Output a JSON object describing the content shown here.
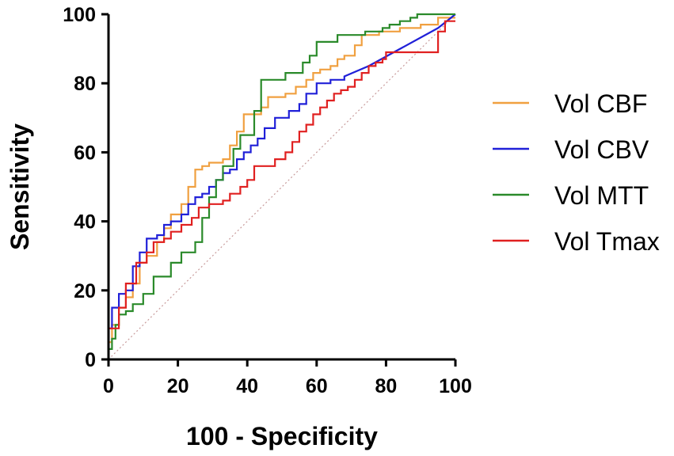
{
  "chart_data": {
    "type": "line",
    "title": "",
    "xlabel": "100 - Specificity",
    "ylabel": "Sensitivity",
    "xlim": [
      0,
      100
    ],
    "ylim": [
      0,
      100
    ],
    "xticks": [
      0,
      20,
      40,
      60,
      80,
      100
    ],
    "yticks": [
      0,
      20,
      40,
      60,
      80,
      100
    ],
    "xtick_labels": [
      "0",
      "20",
      "40",
      "60",
      "80",
      "100"
    ],
    "ytick_labels": [
      "0",
      "20",
      "40",
      "60",
      "80",
      "100"
    ],
    "grid": false,
    "legend_position": "right",
    "reference_line": {
      "name": "Reference",
      "color": "#c89b9b",
      "style": "dotted",
      "x": [
        0,
        100
      ],
      "y": [
        0,
        100
      ]
    },
    "series": [
      {
        "name": "Vol CBF",
        "color": "#f0a040",
        "x": [
          0,
          0,
          1,
          1,
          3,
          3,
          5,
          5,
          7,
          7,
          9,
          9,
          11,
          11,
          14,
          14,
          16,
          16,
          18,
          18,
          21,
          21,
          23,
          23,
          25,
          25,
          27,
          27,
          29,
          29,
          33,
          33,
          35,
          35,
          37,
          37,
          39,
          39,
          44,
          44,
          46,
          46,
          51,
          51,
          54,
          54,
          57,
          57,
          59,
          59,
          61,
          61,
          64,
          64,
          66,
          66,
          68,
          68,
          71,
          71,
          73,
          73,
          78,
          78,
          84,
          84,
          90,
          90,
          95,
          95,
          100
        ],
        "y": [
          0,
          5,
          5,
          10,
          10,
          15,
          15,
          18,
          18,
          22,
          22,
          28,
          28,
          30,
          30,
          34,
          34,
          38,
          38,
          42,
          42,
          45,
          45,
          50,
          50,
          55,
          55,
          56,
          56,
          57,
          57,
          58,
          58,
          62,
          62,
          66,
          66,
          71,
          71,
          73,
          73,
          76,
          76,
          77,
          77,
          79,
          79,
          81,
          81,
          83,
          83,
          84,
          84,
          85,
          85,
          87,
          87,
          88,
          88,
          91,
          91,
          94,
          94,
          95,
          95,
          96,
          96,
          97,
          97,
          99,
          99
        ]
      },
      {
        "name": "Vol CBV",
        "color": "#2020d8",
        "x": [
          0,
          0,
          1,
          1,
          3,
          3,
          5,
          5,
          7,
          7,
          9,
          9,
          11,
          11,
          14,
          14,
          16,
          16,
          18,
          18,
          21,
          21,
          23,
          23,
          25,
          25,
          27,
          27,
          29,
          29,
          31,
          31,
          33,
          33,
          35,
          35,
          37,
          37,
          39,
          39,
          41,
          41,
          43,
          43,
          45,
          45,
          48,
          48,
          52,
          52,
          55,
          55,
          57,
          57,
          60,
          60,
          64,
          64,
          68,
          68,
          75,
          95,
          100
        ],
        "y": [
          2,
          9,
          9,
          15,
          15,
          19,
          19,
          20,
          20,
          27,
          27,
          31,
          31,
          35,
          35,
          36,
          36,
          39,
          39,
          40,
          40,
          42,
          42,
          45,
          45,
          47,
          47,
          48,
          48,
          50,
          50,
          52,
          52,
          54,
          54,
          55,
          55,
          58,
          58,
          60,
          60,
          62,
          62,
          64,
          64,
          67,
          67,
          70,
          70,
          72,
          72,
          74,
          74,
          77,
          77,
          80,
          80,
          81,
          81,
          82,
          85,
          96,
          100
        ]
      },
      {
        "name": "Vol MTT",
        "color": "#2a8a2a",
        "x": [
          0,
          0,
          1,
          1,
          2,
          2,
          3,
          3,
          5,
          5,
          7,
          7,
          10,
          10,
          13,
          13,
          18,
          18,
          21,
          21,
          25,
          25,
          27,
          27,
          29,
          29,
          31,
          31,
          33,
          33,
          36,
          36,
          38,
          38,
          42,
          42,
          44,
          44,
          51,
          51,
          56,
          56,
          58,
          58,
          60,
          60,
          66,
          66,
          74,
          74,
          79,
          79,
          81,
          81,
          84,
          84,
          87,
          87,
          89,
          89,
          100
        ],
        "y": [
          0,
          3,
          3,
          6,
          6,
          10,
          10,
          13,
          13,
          14,
          14,
          16,
          16,
          19,
          19,
          24,
          24,
          28,
          28,
          31,
          31,
          34,
          34,
          41,
          41,
          47,
          47,
          52,
          52,
          56,
          56,
          61,
          61,
          65,
          65,
          72,
          72,
          81,
          81,
          83,
          83,
          86,
          86,
          88,
          88,
          92,
          92,
          94,
          94,
          95,
          95,
          96,
          96,
          97,
          97,
          98,
          98,
          99,
          99,
          100,
          100
        ]
      },
      {
        "name": "Vol Tmax",
        "color": "#e02020",
        "x": [
          0,
          0,
          3,
          3,
          5,
          5,
          8,
          8,
          11,
          11,
          13,
          13,
          16,
          16,
          18,
          18,
          21,
          21,
          24,
          24,
          26,
          26,
          29,
          29,
          33,
          33,
          35,
          35,
          38,
          38,
          40,
          40,
          42,
          42,
          48,
          48,
          51,
          51,
          53,
          53,
          55,
          55,
          57,
          57,
          59,
          59,
          61,
          61,
          63,
          63,
          65,
          65,
          67,
          67,
          69,
          69,
          71,
          71,
          73,
          73,
          75,
          75,
          77,
          77,
          79,
          79,
          80,
          80,
          95,
          95,
          97,
          97,
          100
        ],
        "y": [
          5,
          9,
          9,
          15,
          15,
          22,
          22,
          28,
          28,
          31,
          31,
          34,
          34,
          35,
          35,
          37,
          37,
          39,
          39,
          41,
          41,
          44,
          44,
          45,
          45,
          46,
          46,
          48,
          48,
          50,
          50,
          52,
          52,
          56,
          56,
          58,
          58,
          60,
          60,
          63,
          63,
          66,
          66,
          68,
          68,
          71,
          71,
          73,
          73,
          75,
          75,
          77,
          77,
          78,
          78,
          79,
          79,
          81,
          81,
          83,
          83,
          85,
          85,
          86,
          86,
          87,
          87,
          89,
          89,
          95,
          95,
          98,
          98
        ]
      }
    ]
  }
}
